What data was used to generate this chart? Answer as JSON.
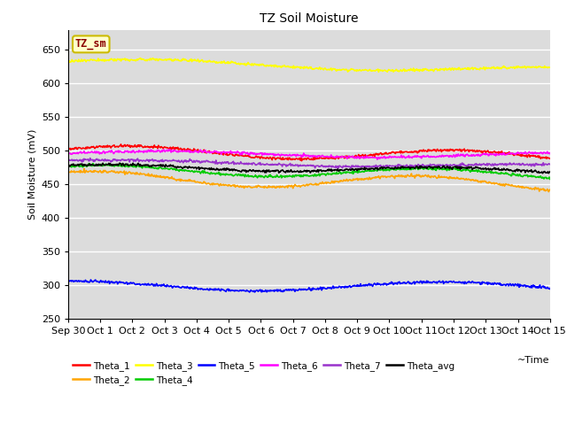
{
  "title": "TZ Soil Moisture",
  "xlabel": "~Time",
  "ylabel": "Soil Moisture (mV)",
  "ylim": [
    250,
    680
  ],
  "yticks": [
    250,
    300,
    350,
    400,
    450,
    500,
    550,
    600,
    650
  ],
  "plot_bg": "#dcdcdc",
  "fig_bg": "#ffffff",
  "legend_label": "TZ_sm",
  "legend_label_color": "#8b0000",
  "legend_label_bg": "#ffffcc",
  "legend_label_edge": "#ccbb00",
  "x_tick_labels": [
    "Sep 30",
    "Oct 1",
    "Oct 2",
    "Oct 3",
    "Oct 4",
    "Oct 5",
    "Oct 6",
    "Oct 7",
    "Oct 8",
    "Oct 9",
    "Oct 10",
    "Oct 11",
    "Oct 12",
    "Oct 13",
    "Oct 14",
    "Oct 15"
  ],
  "series": [
    {
      "name": "Theta_1",
      "color": "#ff0000",
      "base": 500,
      "amplitude": 8,
      "trend": -0.6,
      "freq": 1.5,
      "phase": 0.3
    },
    {
      "name": "Theta_2",
      "color": "#ffa500",
      "base": 460,
      "amplitude": 10,
      "trend": -0.7,
      "freq": 1.5,
      "phase": 1.0
    },
    {
      "name": "Theta_3",
      "color": "#ffff00",
      "base": 633,
      "amplitude": 5,
      "trend": -0.9,
      "freq": 1.2,
      "phase": 0.1
    },
    {
      "name": "Theta_4",
      "color": "#00cc00",
      "base": 472,
      "amplitude": 7,
      "trend": -0.5,
      "freq": 1.5,
      "phase": 0.8
    },
    {
      "name": "Theta_5",
      "color": "#0000ff",
      "base": 299,
      "amplitude": 7,
      "trend": -0.1,
      "freq": 1.3,
      "phase": 1.5
    },
    {
      "name": "Theta_6",
      "color": "#ff00ff",
      "base": 496,
      "amplitude": 4,
      "trend": -0.2,
      "freq": 1.2,
      "phase": 0.0
    },
    {
      "name": "Theta_7",
      "color": "#9932cc",
      "base": 484,
      "amplitude": 3,
      "trend": -0.5,
      "freq": 1.2,
      "phase": 0.5
    },
    {
      "name": "Theta_avg",
      "color": "#000000",
      "base": 476,
      "amplitude": 4,
      "trend": -0.4,
      "freq": 1.5,
      "phase": 0.6
    }
  ],
  "grid_color": "#ffffff",
  "grid_lw": 1.0,
  "line_lw": 1.2,
  "tick_fontsize": 8,
  "label_fontsize": 8,
  "title_fontsize": 10
}
